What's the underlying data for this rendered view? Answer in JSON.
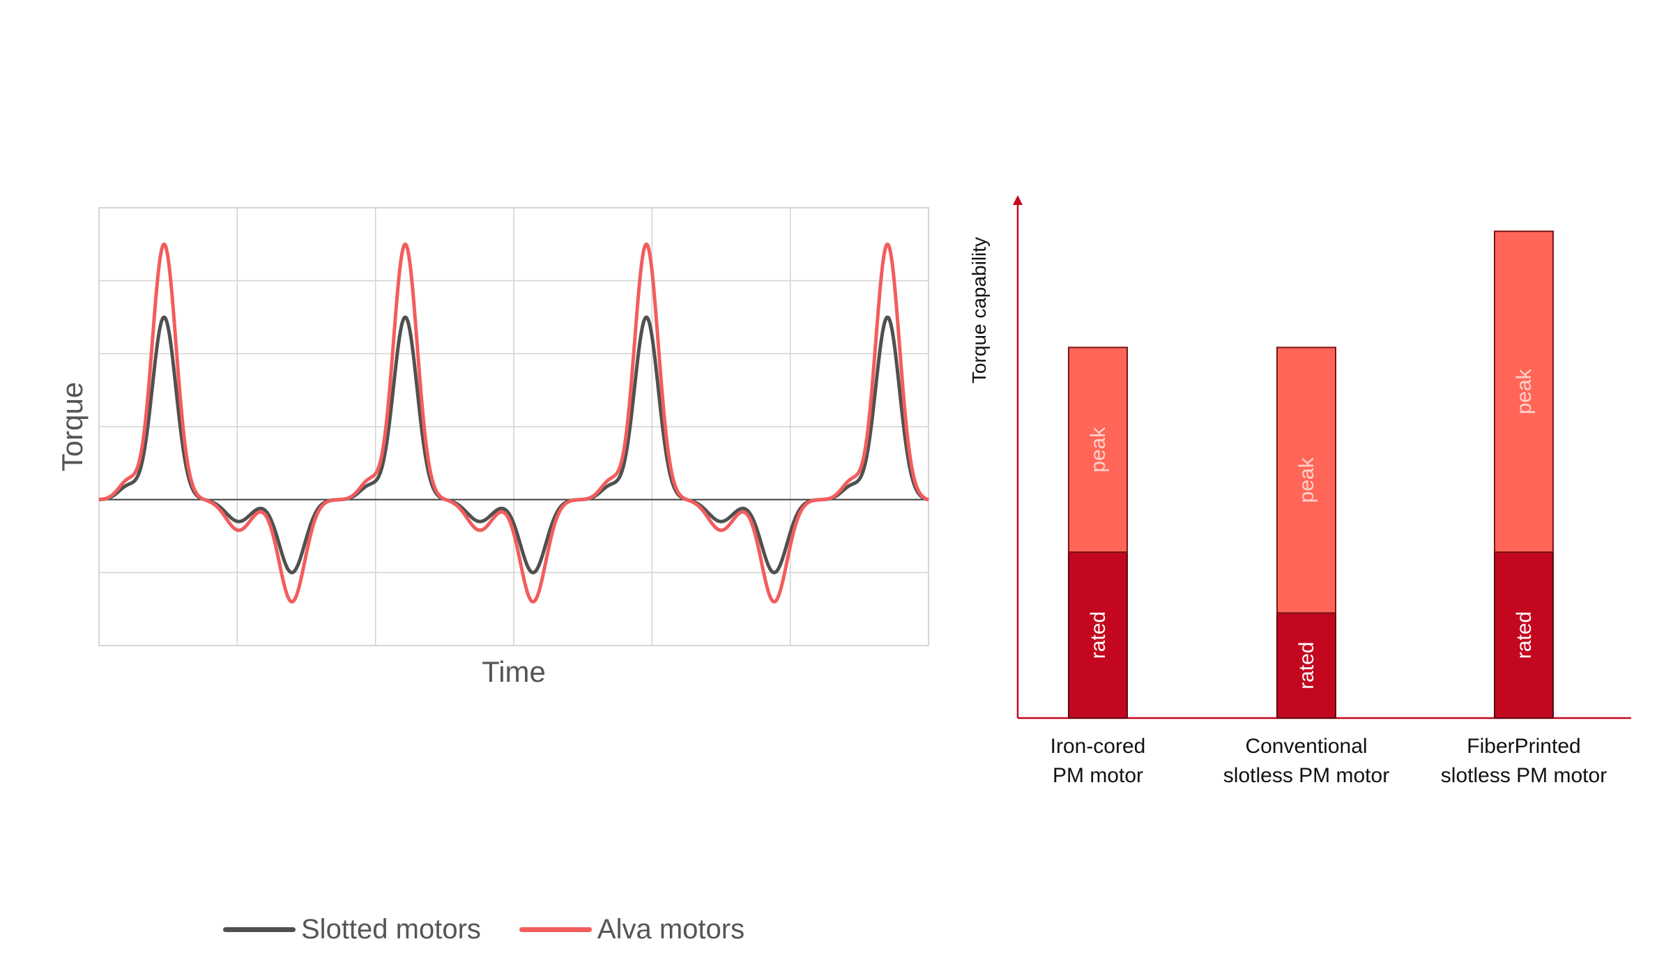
{
  "chart_data": [
    {
      "type": "line",
      "xlabel": "Time",
      "ylabel": "Torque",
      "grid": true,
      "legend": "bottom",
      "ylim": [
        -2,
        4
      ],
      "series": [
        {
          "name": "Slotted motors",
          "color": "#505050"
        },
        {
          "name": "Alva motors",
          "color": "#f25d5d"
        }
      ]
    },
    {
      "type": "bar",
      "stacked": true,
      "ylabel": "Torque capability",
      "categories": [
        [
          "Iron-cored",
          "PM motor"
        ],
        [
          "Conventional",
          "slotless PM motor"
        ],
        [
          "FiberPrinted",
          "slotless PM motor"
        ]
      ],
      "segment_labels": {
        "rated": "rated",
        "peak": "peak"
      },
      "series": [
        {
          "name": "rated",
          "values": [
            3.0,
            1.9,
            3.0
          ],
          "color": "#c3071f"
        },
        {
          "name": "peak",
          "values": [
            3.7,
            4.8,
            5.8
          ],
          "color": "#ff6657"
        }
      ],
      "ylim": [
        0,
        9.2
      ]
    }
  ]
}
